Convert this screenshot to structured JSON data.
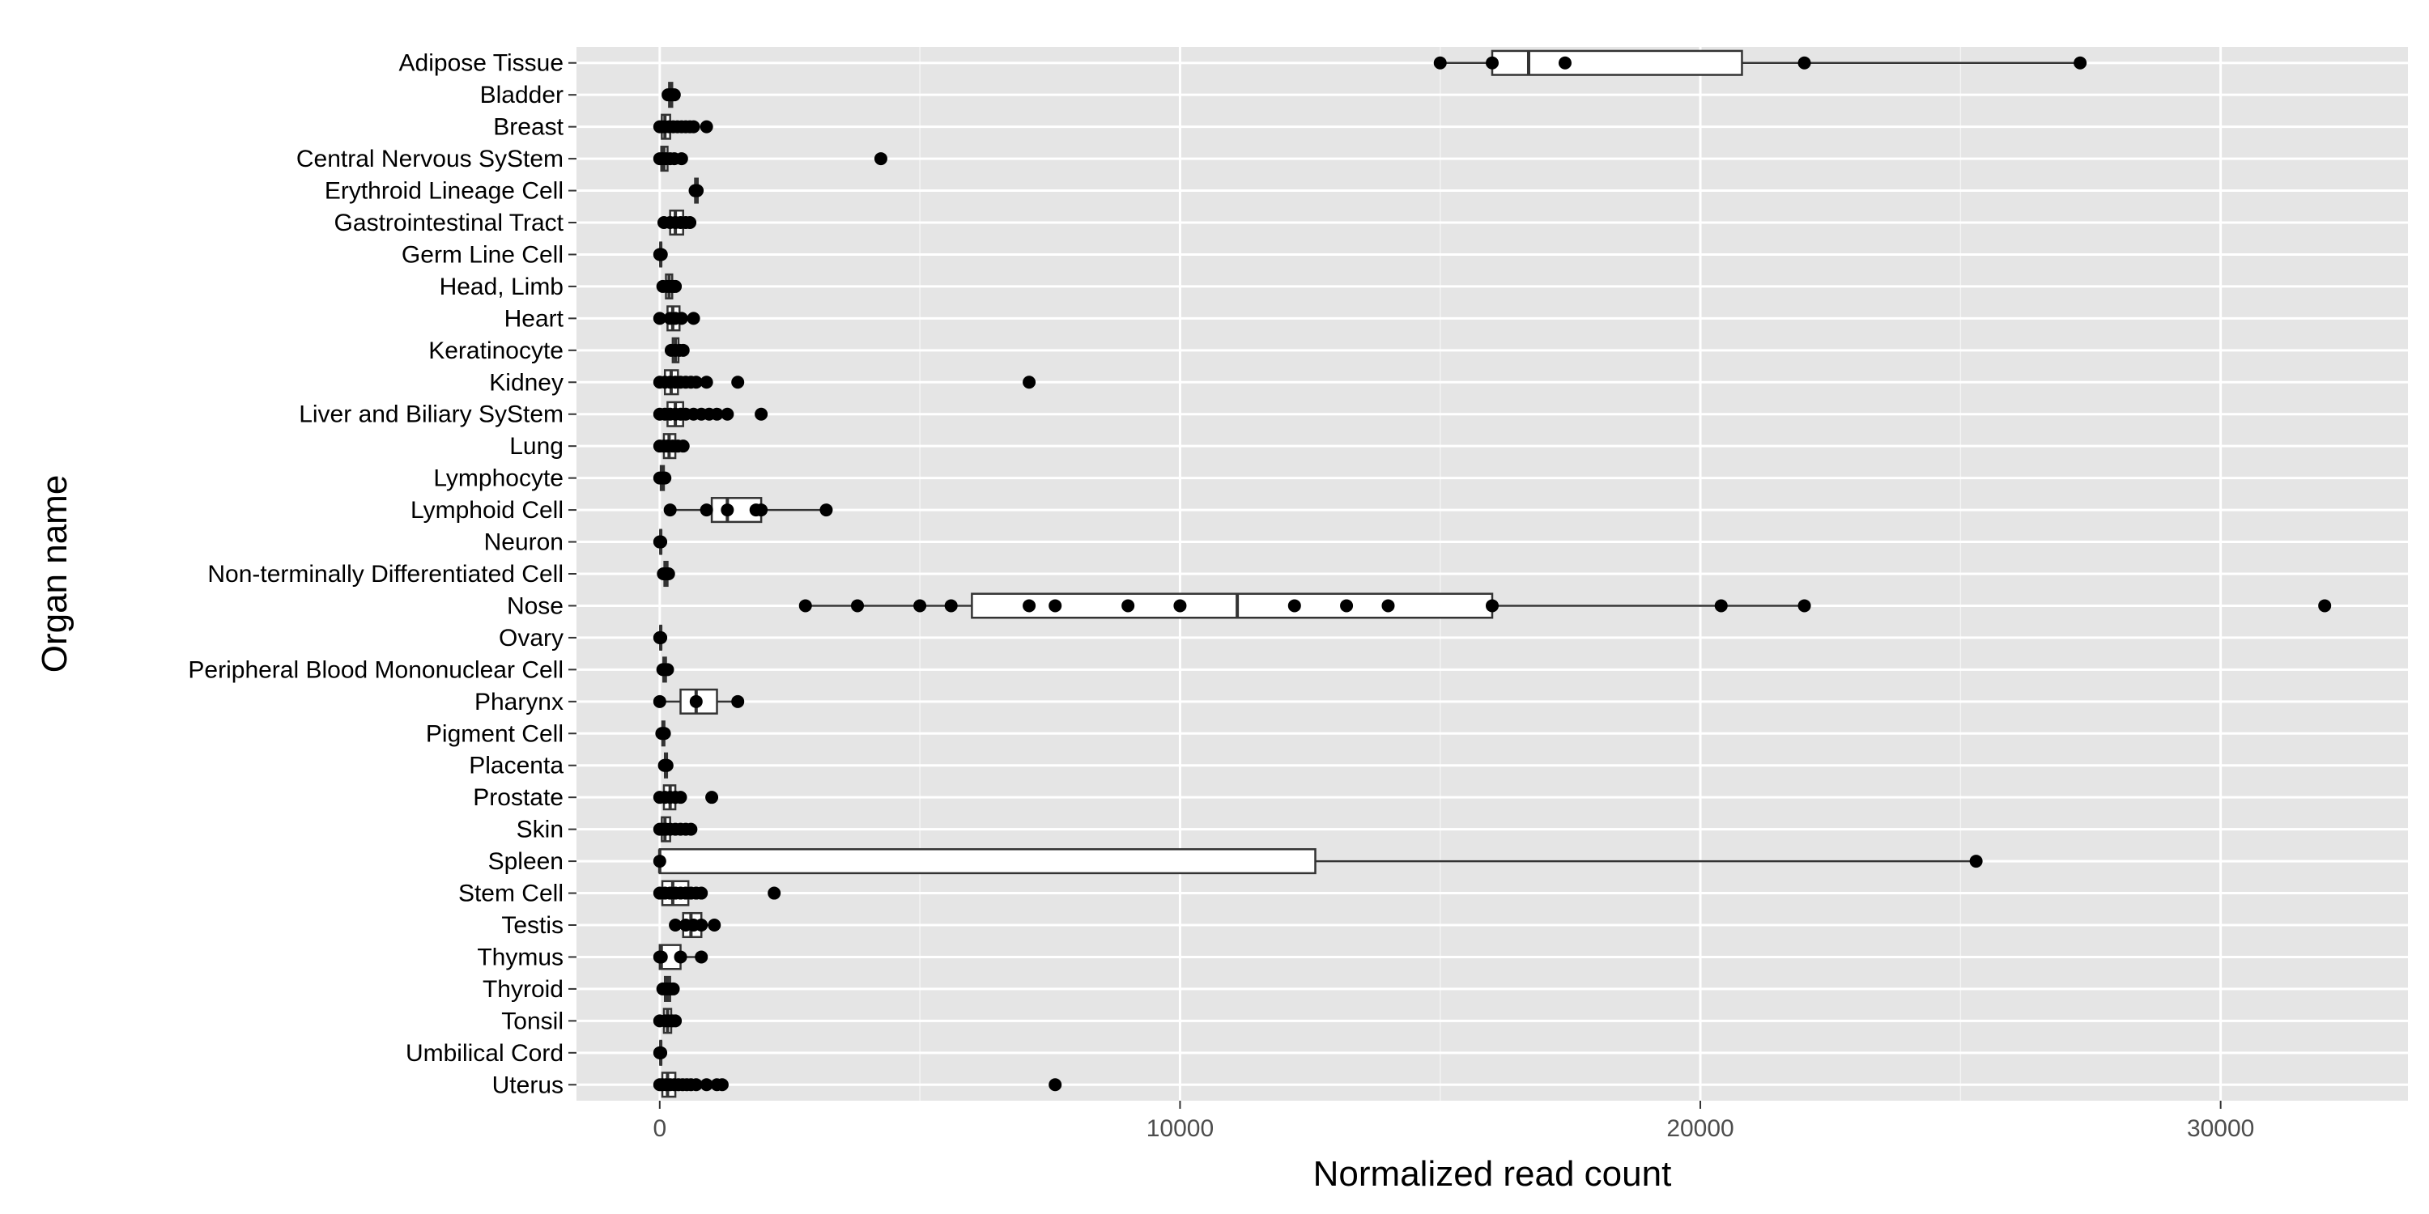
{
  "chart_data": {
    "type": "boxplot",
    "orientation": "horizontal",
    "xlabel": "Normalized read count",
    "ylabel": "Organ name",
    "xlim": [
      -1600,
      33600
    ],
    "xticks": [
      0,
      10000,
      20000,
      30000
    ],
    "xtick_labels": [
      "0",
      "10000",
      "20000",
      "30000"
    ],
    "grid": true,
    "colors": {
      "panel": "#e5e5e5",
      "grid": "#ffffff",
      "box_fill": "#ffffff",
      "stroke": "#333333",
      "point": "#000000"
    },
    "categories": [
      {
        "name": "Adipose Tissue",
        "box": [
          15000,
          16000,
          16700,
          20800,
          27300
        ],
        "points": [
          15000,
          16000,
          17400,
          22000,
          27300
        ]
      },
      {
        "name": "Bladder",
        "box": [
          150,
          180,
          200,
          240,
          280
        ],
        "points": [
          160,
          200,
          240,
          280
        ]
      },
      {
        "name": "Breast",
        "box": [
          0,
          40,
          100,
          200,
          650
        ],
        "points": [
          0,
          50,
          100,
          180,
          260,
          340,
          420,
          500,
          580,
          650,
          900
        ]
      },
      {
        "name": "Central Nervous SyStem",
        "box": [
          0,
          30,
          80,
          150,
          300
        ],
        "points": [
          0,
          60,
          120,
          200,
          280,
          420,
          4250
        ]
      },
      {
        "name": "Erythroid Lineage Cell",
        "box": [
          650,
          680,
          700,
          730,
          760
        ],
        "points": [
          680,
          720
        ]
      },
      {
        "name": "Gastrointestinal Tract",
        "box": [
          50,
          200,
          300,
          450,
          600
        ],
        "points": [
          80,
          200,
          300,
          400,
          500,
          580
        ]
      },
      {
        "name": "Germ Line Cell",
        "box": [
          0,
          10,
          20,
          30,
          50
        ],
        "points": [
          0,
          30
        ]
      },
      {
        "name": "Head, Limb",
        "box": [
          50,
          120,
          180,
          240,
          300
        ],
        "points": [
          60,
          140,
          200,
          260,
          300
        ]
      },
      {
        "name": "Heart",
        "box": [
          0,
          150,
          250,
          380,
          600
        ],
        "points": [
          0,
          200,
          300,
          420,
          650
        ]
      },
      {
        "name": "Keratinocyte",
        "box": [
          200,
          250,
          300,
          360,
          450
        ],
        "points": [
          220,
          300,
          380,
          450
        ]
      },
      {
        "name": "Kidney",
        "box": [
          0,
          100,
          220,
          350,
          700
        ],
        "points": [
          0,
          100,
          200,
          300,
          400,
          500,
          600,
          700,
          900,
          1500,
          7100
        ]
      },
      {
        "name": "Liver and Biliary SyStem",
        "box": [
          0,
          150,
          300,
          450,
          1000
        ],
        "points": [
          0,
          100,
          200,
          300,
          400,
          500,
          650,
          800,
          950,
          1100,
          1300,
          1950
        ]
      },
      {
        "name": "Lung",
        "box": [
          0,
          80,
          180,
          300,
          450
        ],
        "points": [
          0,
          80,
          150,
          250,
          350,
          450
        ]
      },
      {
        "name": "Lymphocyte",
        "box": [
          0,
          20,
          50,
          80,
          120
        ],
        "points": [
          0,
          60,
          100
        ]
      },
      {
        "name": "Lymphoid Cell",
        "box": [
          200,
          1000,
          1300,
          1950,
          3200
        ],
        "points": [
          200,
          900,
          1300,
          1850,
          1950,
          3200
        ]
      },
      {
        "name": "Neuron",
        "box": [
          0,
          10,
          20,
          30,
          50
        ],
        "points": [
          0,
          20
        ]
      },
      {
        "name": "Non-terminally Differentiated Cell",
        "box": [
          60,
          90,
          120,
          150,
          180
        ],
        "points": [
          70,
          120,
          170
        ]
      },
      {
        "name": "Nose",
        "box": [
          2800,
          6000,
          11100,
          16000,
          22000
        ],
        "points": [
          2800,
          3800,
          5000,
          5600,
          7100,
          7600,
          9000,
          10000,
          12200,
          13200,
          14000,
          16000,
          20400,
          22000,
          32000
        ]
      },
      {
        "name": "Ovary",
        "box": [
          0,
          10,
          20,
          30,
          50
        ],
        "points": [
          0,
          20
        ]
      },
      {
        "name": "Peripheral Blood Mononuclear Cell",
        "box": [
          50,
          70,
          100,
          120,
          150
        ],
        "points": [
          60,
          110,
          150
        ]
      },
      {
        "name": "Pharynx",
        "box": [
          0,
          400,
          700,
          1100,
          1500
        ],
        "points": [
          0,
          700,
          1500
        ]
      },
      {
        "name": "Pigment Cell",
        "box": [
          30,
          50,
          70,
          90,
          110
        ],
        "points": [
          40,
          90
        ]
      },
      {
        "name": "Placenta",
        "box": [
          80,
          100,
          120,
          140,
          160
        ],
        "points": [
          90,
          140
        ]
      },
      {
        "name": "Prostate",
        "box": [
          0,
          80,
          200,
          300,
          400
        ],
        "points": [
          0,
          100,
          200,
          300,
          400,
          1000
        ]
      },
      {
        "name": "Skin",
        "box": [
          0,
          40,
          100,
          200,
          600
        ],
        "points": [
          0,
          60,
          120,
          200,
          300,
          400,
          500,
          600
        ]
      },
      {
        "name": "Spleen",
        "box": [
          0,
          0,
          0,
          12600,
          25300
        ],
        "points": [
          0,
          25300
        ]
      },
      {
        "name": "Stem Cell",
        "box": [
          0,
          50,
          250,
          550,
          800
        ],
        "points": [
          0,
          100,
          200,
          300,
          400,
          500,
          600,
          700,
          800,
          2200
        ]
      },
      {
        "name": "Testis",
        "box": [
          300,
          450,
          600,
          800,
          1050
        ],
        "points": [
          300,
          500,
          650,
          800,
          1050
        ]
      },
      {
        "name": "Thymus",
        "box": [
          0,
          0,
          30,
          400,
          750
        ],
        "points": [
          0,
          30,
          400,
          800
        ]
      },
      {
        "name": "Thyroid",
        "box": [
          50,
          100,
          150,
          200,
          250
        ],
        "points": [
          60,
          130,
          200,
          260
        ]
      },
      {
        "name": "Tonsil",
        "box": [
          0,
          80,
          150,
          220,
          300
        ],
        "points": [
          0,
          100,
          170,
          240,
          300
        ]
      },
      {
        "name": "Umbilical Cord",
        "box": [
          0,
          10,
          20,
          30,
          50
        ],
        "points": [
          0,
          20
        ]
      },
      {
        "name": "Uterus",
        "box": [
          0,
          50,
          150,
          300,
          1200
        ],
        "points": [
          0,
          50,
          120,
          200,
          280,
          360,
          440,
          520,
          600,
          700,
          900,
          1100,
          1200,
          7600
        ]
      }
    ]
  }
}
